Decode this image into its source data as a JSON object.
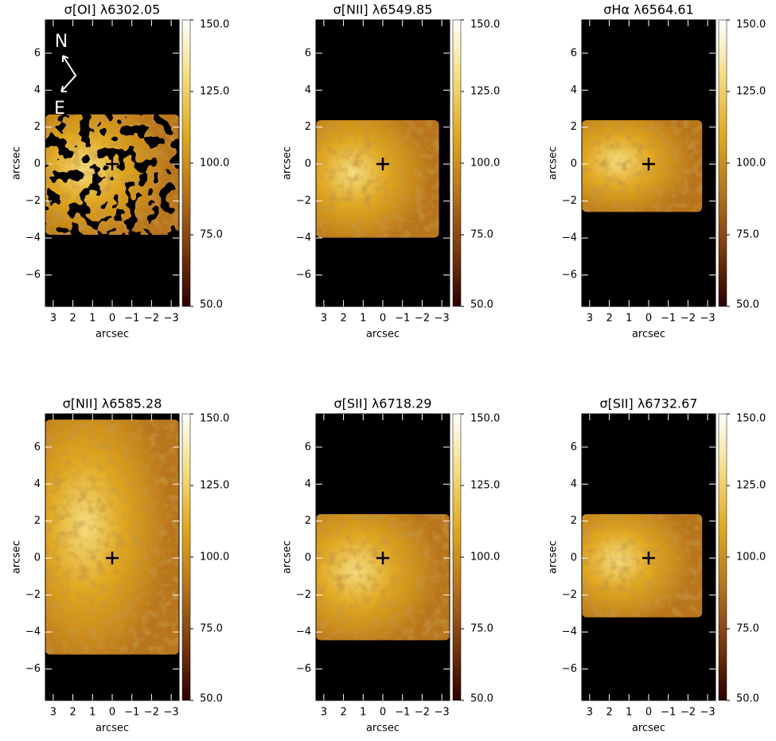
{
  "chart_data": [
    {
      "type": "heatmap",
      "title": "σ[OI] λ6302.05",
      "xlabel": "arcsec",
      "ylabel": "arcsec",
      "xlim": [
        3.4,
        -3.4
      ],
      "ylim": [
        -7.7,
        7.8
      ],
      "xticks": [
        3,
        2,
        1,
        0,
        {
          "value": -1,
          "label": "−1"
        },
        {
          "value": -2,
          "label": "−2"
        },
        {
          "value": -3,
          "label": "−3"
        }
      ],
      "yticks": [
        {
          "value": -6,
          "label": "−6"
        },
        {
          "value": -4,
          "label": "−4"
        },
        {
          "value": -2,
          "label": "−2"
        },
        0,
        2,
        4,
        6
      ],
      "clim": [
        50,
        150
      ],
      "cticks": [
        {
          "value": 50,
          "label": "50.0"
        },
        {
          "value": 75,
          "label": "75.0"
        },
        {
          "value": 100,
          "label": "100.0"
        },
        {
          "value": 125,
          "label": "125.0"
        },
        {
          "value": 150,
          "label": "150.0"
        }
      ],
      "colormap": [
        "#2a0000",
        "#7a3a10",
        "#b8741c",
        "#e0a820",
        "#f4dc80",
        "#ffffff"
      ],
      "center": {
        "x": 0,
        "y": 0
      },
      "annotations": [
        "N",
        "E"
      ]
    },
    {
      "type": "heatmap",
      "title": "σ[NII] λ6549.85",
      "xlabel": "arcsec",
      "ylabel": "arcsec",
      "xlim": [
        3.4,
        -3.4
      ],
      "ylim": [
        -7.7,
        7.8
      ],
      "xticks": [
        3,
        2,
        1,
        0,
        {
          "value": -1,
          "label": "−1"
        },
        {
          "value": -2,
          "label": "−2"
        },
        {
          "value": -3,
          "label": "−3"
        }
      ],
      "yticks": [
        {
          "value": -6,
          "label": "−6"
        },
        {
          "value": -4,
          "label": "−4"
        },
        {
          "value": -2,
          "label": "−2"
        },
        0,
        2,
        4,
        6
      ],
      "clim": [
        50,
        150
      ],
      "cticks": [
        {
          "value": 50,
          "label": "50.0"
        },
        {
          "value": 75,
          "label": "75.0"
        },
        {
          "value": 100,
          "label": "100.0"
        },
        {
          "value": 125,
          "label": "125.0"
        },
        {
          "value": 150,
          "label": "150.0"
        }
      ],
      "colormap": [
        "#2a0000",
        "#7a3a10",
        "#b8741c",
        "#e0a820",
        "#f4dc80",
        "#ffffff"
      ],
      "center": {
        "x": 0,
        "y": 0
      }
    },
    {
      "type": "heatmap",
      "title": "σHα λ6564.61",
      "xlabel": "arcsec",
      "ylabel": "arcsec",
      "xlim": [
        3.4,
        -3.4
      ],
      "ylim": [
        -7.7,
        7.8
      ],
      "xticks": [
        3,
        2,
        1,
        0,
        {
          "value": -1,
          "label": "−1"
        },
        {
          "value": -2,
          "label": "−2"
        },
        {
          "value": -3,
          "label": "−3"
        }
      ],
      "yticks": [
        {
          "value": -6,
          "label": "−6"
        },
        {
          "value": -4,
          "label": "−4"
        },
        {
          "value": -2,
          "label": "−2"
        },
        0,
        2,
        4,
        6
      ],
      "clim": [
        50,
        150
      ],
      "cticks": [
        {
          "value": 50,
          "label": "50.0"
        },
        {
          "value": 75,
          "label": "75.0"
        },
        {
          "value": 100,
          "label": "100.0"
        },
        {
          "value": 125,
          "label": "125.0"
        },
        {
          "value": 150,
          "label": "150.0"
        }
      ],
      "colormap": [
        "#2a0000",
        "#7a3a10",
        "#b8741c",
        "#e0a820",
        "#f4dc80",
        "#ffffff"
      ],
      "center": {
        "x": 0,
        "y": 0
      }
    },
    {
      "type": "heatmap",
      "title": "σ[NII] λ6585.28",
      "xlabel": "arcsec",
      "ylabel": "arcsec",
      "xlim": [
        3.4,
        -3.4
      ],
      "ylim": [
        -7.7,
        7.8
      ],
      "xticks": [
        3,
        2,
        1,
        0,
        {
          "value": -1,
          "label": "−1"
        },
        {
          "value": -2,
          "label": "−2"
        },
        {
          "value": -3,
          "label": "−3"
        }
      ],
      "yticks": [
        {
          "value": -6,
          "label": "−6"
        },
        {
          "value": -4,
          "label": "−4"
        },
        {
          "value": -2,
          "label": "−2"
        },
        0,
        2,
        4,
        6
      ],
      "clim": [
        50,
        150
      ],
      "cticks": [
        {
          "value": 50,
          "label": "50.0"
        },
        {
          "value": 75,
          "label": "75.0"
        },
        {
          "value": 100,
          "label": "100.0"
        },
        {
          "value": 125,
          "label": "125.0"
        },
        {
          "value": 150,
          "label": "150.0"
        }
      ],
      "colormap": [
        "#2a0000",
        "#7a3a10",
        "#b8741c",
        "#e0a820",
        "#f4dc80",
        "#ffffff"
      ],
      "center": {
        "x": 0,
        "y": 0
      }
    },
    {
      "type": "heatmap",
      "title": "σ[SII] λ6718.29",
      "xlabel": "arcsec",
      "ylabel": "arcsec",
      "xlim": [
        3.4,
        -3.4
      ],
      "ylim": [
        -7.7,
        7.8
      ],
      "xticks": [
        3,
        2,
        1,
        0,
        {
          "value": -1,
          "label": "−1"
        },
        {
          "value": -2,
          "label": "−2"
        },
        {
          "value": -3,
          "label": "−3"
        }
      ],
      "yticks": [
        {
          "value": -6,
          "label": "−6"
        },
        {
          "value": -4,
          "label": "−4"
        },
        {
          "value": -2,
          "label": "−2"
        },
        0,
        2,
        4,
        6
      ],
      "clim": [
        50,
        150
      ],
      "cticks": [
        {
          "value": 50,
          "label": "50.0"
        },
        {
          "value": 75,
          "label": "75.0"
        },
        {
          "value": 100,
          "label": "100.0"
        },
        {
          "value": 125,
          "label": "125.0"
        },
        {
          "value": 150,
          "label": "150.0"
        }
      ],
      "colormap": [
        "#2a0000",
        "#7a3a10",
        "#b8741c",
        "#e0a820",
        "#f4dc80",
        "#ffffff"
      ],
      "center": {
        "x": 0,
        "y": 0
      }
    },
    {
      "type": "heatmap",
      "title": "σ[SII] λ6732.67",
      "xlabel": "arcsec",
      "ylabel": "arcsec",
      "xlim": [
        3.4,
        -3.4
      ],
      "ylim": [
        -7.7,
        7.8
      ],
      "xticks": [
        3,
        2,
        1,
        0,
        {
          "value": -1,
          "label": "−1"
        },
        {
          "value": -2,
          "label": "−2"
        },
        {
          "value": -3,
          "label": "−3"
        }
      ],
      "yticks": [
        {
          "value": -6,
          "label": "−6"
        },
        {
          "value": -4,
          "label": "−4"
        },
        {
          "value": -2,
          "label": "−2"
        },
        0,
        2,
        4,
        6
      ],
      "clim": [
        50,
        150
      ],
      "cticks": [
        {
          "value": 50,
          "label": "50.0"
        },
        {
          "value": 75,
          "label": "75.0"
        },
        {
          "value": 100,
          "label": "100.0"
        },
        {
          "value": 125,
          "label": "125.0"
        },
        {
          "value": 150,
          "label": "150.0"
        }
      ],
      "colormap": [
        "#2a0000",
        "#7a3a10",
        "#b8741c",
        "#e0a820",
        "#f4dc80",
        "#ffffff"
      ],
      "center": {
        "x": 0,
        "y": 0
      }
    }
  ]
}
